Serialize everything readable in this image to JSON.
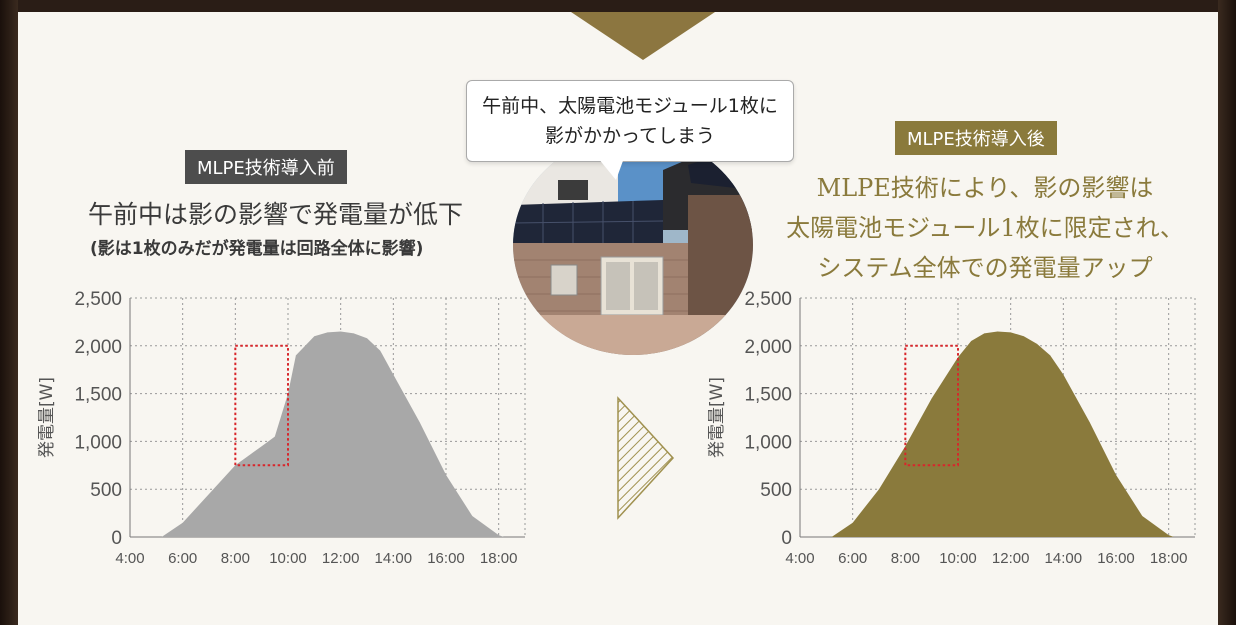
{
  "before": {
    "badge": "MLPE技術導入前",
    "title": "午前中は影の影響で発電量が低下",
    "subtitle": "(影は1枚のみだが発電量は回路全体に影響)"
  },
  "after": {
    "badge": "MLPE技術導入後",
    "line1": "MLPE技術により、影の影響は",
    "line2": "太陽電池モジュール1枚に限定され、",
    "line3": "システム全体での発電量アップ"
  },
  "bubble": {
    "line1": "午前中、太陽電池モジュール1枚に",
    "line2": "影がかかってしまう"
  },
  "colors": {
    "before_fill": "#a8a8a8",
    "after_fill": "#8a7a3c",
    "highlight": "#d8262b",
    "before_badge": "#4d4d4d",
    "after_badge": "#8a7a3c"
  },
  "icons": [
    "hatched-arrow-icon"
  ],
  "chart_data": [
    {
      "type": "area",
      "ylabel": "発電量[W]",
      "xlabel": "",
      "x_ticks": [
        "4:00",
        "6:00",
        "8:00",
        "10:00",
        "12:00",
        "14:00",
        "16:00",
        "18:00"
      ],
      "y_ticks": [
        "0",
        "500",
        "1,000",
        "1,500",
        "2,000",
        "2,500"
      ],
      "xlim": [
        4,
        19
      ],
      "ylim": [
        0,
        2500
      ],
      "grid": true,
      "series": [
        {
          "x": [
            5.2,
            6,
            7,
            8,
            8.5,
            9,
            9.5,
            10,
            10.3,
            11,
            11.5,
            12,
            12.5,
            13,
            13.5,
            14,
            15,
            16,
            17,
            18,
            18.2
          ],
          "values": [
            0,
            150,
            450,
            750,
            850,
            950,
            1050,
            1500,
            1900,
            2100,
            2140,
            2150,
            2130,
            2080,
            1950,
            1700,
            1200,
            650,
            220,
            20,
            0
          ]
        }
      ],
      "highlight": {
        "x_range": [
          8,
          10
        ],
        "y_range": [
          750,
          2000
        ]
      }
    },
    {
      "type": "area",
      "ylabel": "発電量[W]",
      "xlabel": "",
      "x_ticks": [
        "4:00",
        "6:00",
        "8:00",
        "10:00",
        "12:00",
        "14:00",
        "16:00",
        "18:00"
      ],
      "y_ticks": [
        "0",
        "500",
        "1,000",
        "1,500",
        "2,000",
        "2,500"
      ],
      "xlim": [
        4,
        19
      ],
      "ylim": [
        0,
        2500
      ],
      "grid": true,
      "series": [
        {
          "x": [
            5.2,
            6,
            7,
            8,
            9,
            10,
            10.5,
            11,
            11.5,
            12,
            12.5,
            13,
            13.5,
            14,
            15,
            16,
            17,
            18,
            18.2
          ],
          "values": [
            0,
            150,
            500,
            950,
            1450,
            1880,
            2050,
            2130,
            2150,
            2140,
            2100,
            2020,
            1900,
            1700,
            1200,
            650,
            220,
            20,
            0
          ]
        }
      ],
      "highlight": {
        "x_range": [
          8,
          10
        ],
        "y_range": [
          750,
          2000
        ]
      }
    }
  ]
}
